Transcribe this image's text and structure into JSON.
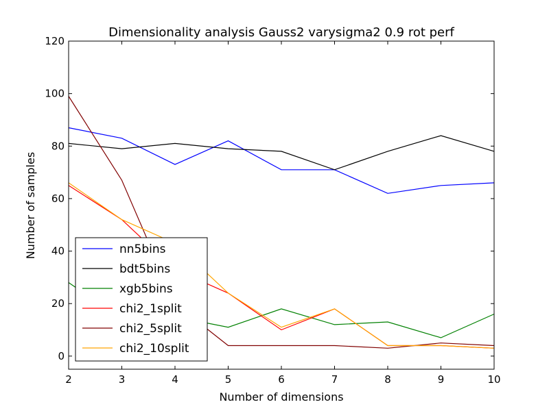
{
  "chart_data": {
    "type": "line",
    "title": "Dimensionality analysis Gauss2 varysigma2 0.9 rot perf",
    "xlabel": "Number of dimensions",
    "ylabel": "Number of samples",
    "xlim": [
      2,
      10
    ],
    "ylim": [
      -5,
      120
    ],
    "xticks": [
      "2",
      "3",
      "4",
      "5",
      "6",
      "7",
      "8",
      "9",
      "10"
    ],
    "yticks": [
      "0",
      "20",
      "40",
      "60",
      "80",
      "100",
      "120"
    ],
    "grid": false,
    "legend_position": "lower-left",
    "x": [
      2,
      3,
      4,
      5,
      6,
      7,
      8,
      9,
      10
    ],
    "series": [
      {
        "name": "nn5bins",
        "color": "#0000ff",
        "values": [
          87,
          83,
          73,
          82,
          71,
          71,
          62,
          65,
          66
        ]
      },
      {
        "name": "bdt5bins",
        "color": "#000000",
        "values": [
          81,
          79,
          81,
          79,
          78,
          71,
          78,
          84,
          78
        ]
      },
      {
        "name": "xgb5bins",
        "color": "#008000",
        "values": [
          28,
          14,
          15,
          11,
          18,
          12,
          13,
          7,
          16
        ]
      },
      {
        "name": "chi2_1split",
        "color": "#ff0000",
        "values": [
          65,
          52,
          33,
          24,
          10,
          18,
          4,
          4,
          3
        ]
      },
      {
        "name": "chi2_5split",
        "color": "#800000",
        "values": [
          99,
          67,
          20,
          4,
          4,
          4,
          3,
          5,
          4
        ]
      },
      {
        "name": "chi2_10split",
        "color": "#ffa500",
        "values": [
          66,
          52,
          43,
          24,
          11,
          18,
          4,
          4,
          3
        ]
      }
    ]
  }
}
